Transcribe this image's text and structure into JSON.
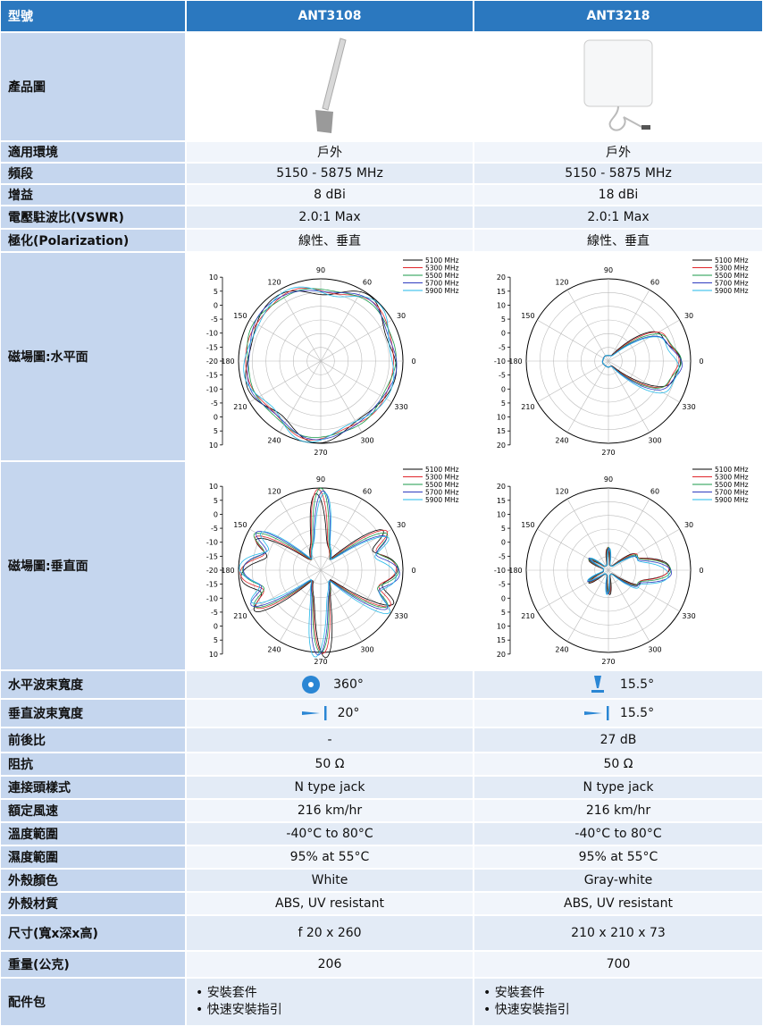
{
  "header": {
    "label": "型號",
    "models": [
      "ANT3108",
      "ANT3218"
    ]
  },
  "polar": {
    "angles": [
      90,
      60,
      30,
      0,
      330,
      300,
      270,
      240,
      210,
      180,
      150,
      120
    ],
    "legend": [
      {
        "name": "5100 MHz",
        "color": "#000000"
      },
      {
        "name": "5300 MHz",
        "color": "#e0262b"
      },
      {
        "name": "5500 MHz",
        "color": "#1a9a4a"
      },
      {
        "name": "5700 MHz",
        "color": "#2e3cc0"
      },
      {
        "name": "5900 MHz",
        "color": "#22b8e8"
      }
    ]
  },
  "table": {
    "rows": [
      {
        "label": "產品圖"
      },
      {
        "label": "適用環境",
        "cells": [
          "戶外",
          "戶外"
        ]
      },
      {
        "label": "頻段",
        "cells": [
          "5150 - 5875 MHz",
          "5150 - 5875 MHz"
        ]
      },
      {
        "label": "增益",
        "cells": [
          "8 dBi",
          "18 dBi"
        ]
      },
      {
        "label": "電壓駐波比(VSWR)",
        "cells": [
          "2.0:1 Max",
          "2.0:1 Max"
        ]
      },
      {
        "label": "極化(Polarization)",
        "cells": [
          "線性、垂直",
          "線性、垂直"
        ]
      },
      {
        "label": "磁場圖:水平面",
        "plots": [
          {
            "radial": [
              10,
              5,
              0,
              -5,
              -10,
              -15,
              -20,
              -15,
              -10,
              -5,
              0,
              5,
              10
            ]
          },
          {
            "radial": [
              20,
              15,
              10,
              5,
              0,
              -5,
              -10,
              -5,
              0,
              5,
              10,
              15,
              20
            ]
          }
        ]
      },
      {
        "label": "磁場圖:垂直面",
        "plots": [
          {
            "radial": [
              10,
              5,
              0,
              -5,
              -10,
              -15,
              -20,
              -15,
              -10,
              -5,
              0,
              5,
              10
            ]
          },
          {
            "radial": [
              20,
              15,
              10,
              5,
              0,
              -5,
              -10,
              -5,
              0,
              5,
              10,
              15,
              20
            ]
          }
        ]
      },
      {
        "label": "水平波束寬度",
        "cells": [
          "360°",
          "15.5°"
        ]
      },
      {
        "label": "垂直波束寬度",
        "cells": [
          "20°",
          "15.5°"
        ]
      },
      {
        "label": "前後比",
        "cells": [
          "-",
          "27 dB"
        ]
      },
      {
        "label": "阻抗",
        "cells": [
          "50 Ω",
          "50 Ω"
        ]
      },
      {
        "label": "連接頭樣式",
        "cells": [
          "N type jack",
          "N type jack"
        ]
      },
      {
        "label": "額定風速",
        "cells": [
          "216 km/hr",
          "216 km/hr"
        ]
      },
      {
        "label": "溫度範圍",
        "cells": [
          "-40°C to 80°C",
          "-40°C to 80°C"
        ]
      },
      {
        "label": "濕度範圍",
        "cells": [
          "95% at 55°C",
          "95% at 55°C"
        ]
      },
      {
        "label": "外殼顏色",
        "cells": [
          "White",
          "Gray-white"
        ]
      },
      {
        "label": "外殼材質",
        "cells": [
          "ABS, UV resistant",
          "ABS, UV resistant"
        ]
      },
      {
        "label": "尺寸(寬x深x高)",
        "cells": [
          "f 20 x 260",
          "210 x 210 x 73"
        ]
      },
      {
        "label": "重量(公克)",
        "cells": [
          "206",
          "700"
        ]
      },
      {
        "label": "配件包",
        "cells": [
          [
            "• 安裝套件",
            "• 快速安裝指引"
          ],
          [
            "• 安裝套件",
            "• 快速安裝指引"
          ]
        ]
      }
    ]
  }
}
